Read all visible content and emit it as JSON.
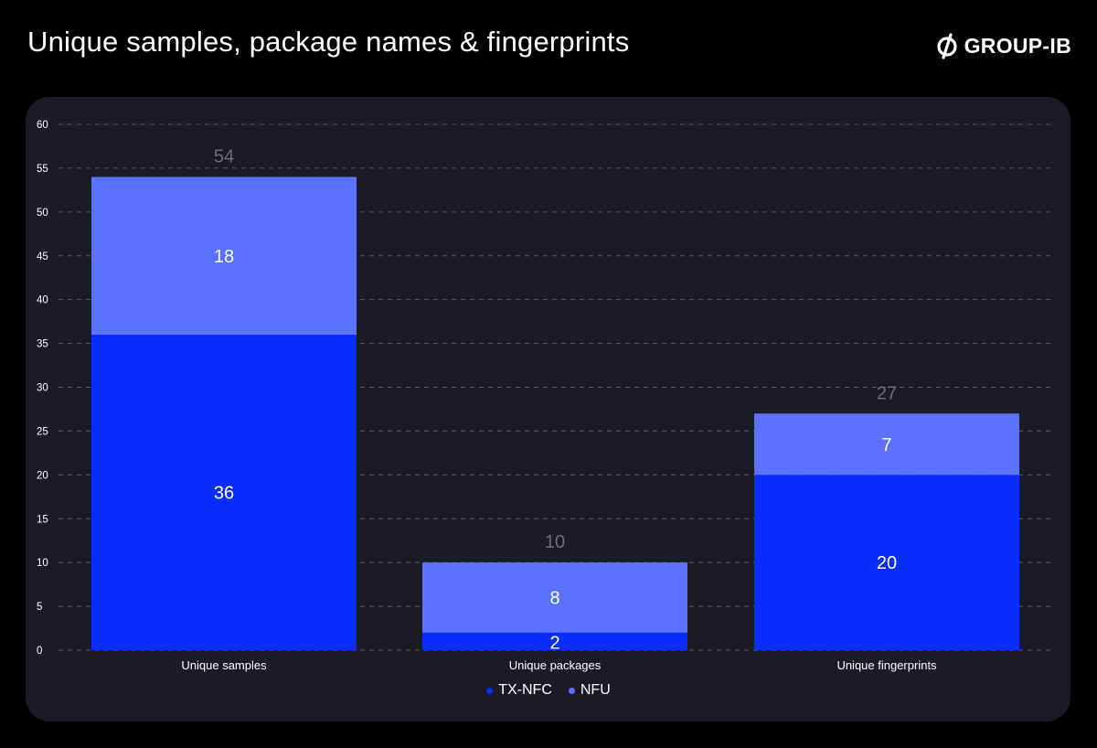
{
  "header": {
    "title": "Unique samples, package names & fingerprints",
    "brand": "GROUP-IB",
    "brand_icon": "group-ib-logo-icon"
  },
  "colors": {
    "background": "#000000",
    "panel": "#1a1b24",
    "tx_nfc": "#0a2dff",
    "nfu": "#5b72ff",
    "grid": "#5a5b66",
    "total_label": "#6d6e78"
  },
  "chart_data": {
    "type": "bar",
    "stacked": true,
    "title": "Unique samples, package names & fingerprints",
    "categories": [
      "Unique samples",
      "Unique packages",
      "Unique fingerprints"
    ],
    "series": [
      {
        "name": "TX-NFC",
        "values": [
          36,
          2,
          20
        ]
      },
      {
        "name": "NFU",
        "values": [
          18,
          8,
          7
        ]
      }
    ],
    "totals": [
      54,
      10,
      27
    ],
    "yticks": [
      0,
      5,
      10,
      15,
      20,
      25,
      30,
      35,
      40,
      45,
      50,
      55,
      60
    ],
    "ylim": [
      0,
      60
    ],
    "grid": true,
    "legend_position": "bottom-center"
  }
}
